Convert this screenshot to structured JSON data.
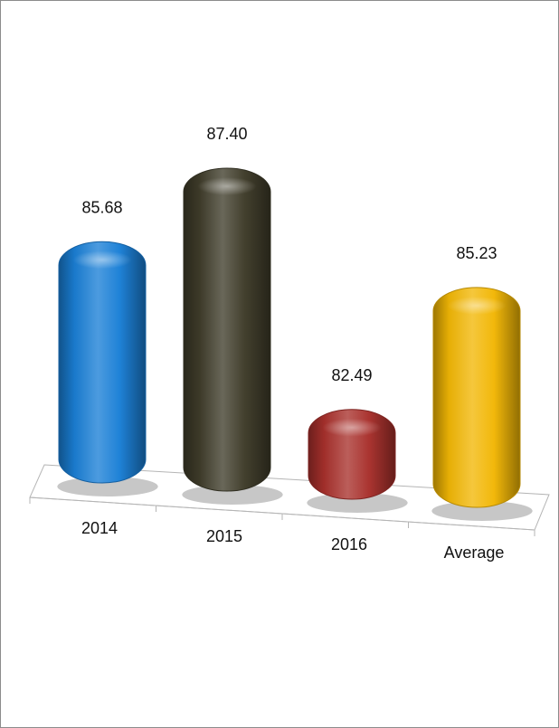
{
  "chart_data": {
    "type": "bar",
    "title": "",
    "xlabel": "",
    "ylabel": "",
    "categories": [
      "2014",
      "2015",
      "2016",
      "Average"
    ],
    "values": [
      85.68,
      87.4,
      82.49,
      85.23
    ],
    "data_labels": [
      "85.68",
      "87.40",
      "82.49",
      "85.23"
    ],
    "ylim": [
      80.6,
      88.5
    ],
    "grid": false,
    "legend": "none",
    "colors": [
      "#1a7fd6",
      "#3f3c2a",
      "#a8302c",
      "#f2b705"
    ]
  }
}
